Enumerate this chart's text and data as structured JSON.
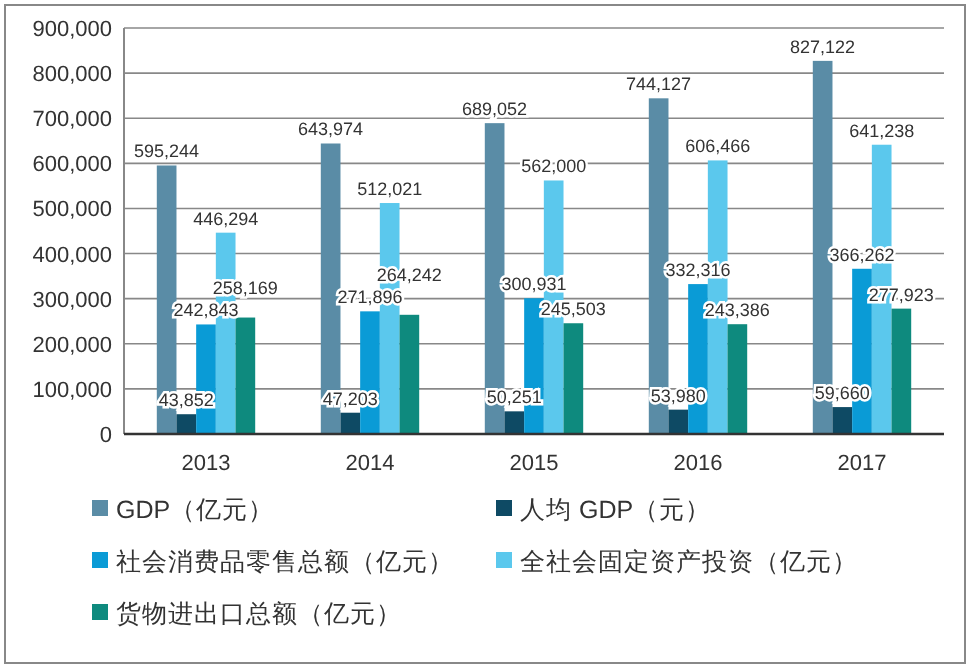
{
  "chart_data": {
    "type": "bar",
    "categories": [
      "2013",
      "2014",
      "2015",
      "2016",
      "2017"
    ],
    "ylim": [
      0,
      900000
    ],
    "yticks": [
      {
        "value": 0,
        "label": "0"
      },
      {
        "value": 100000,
        "label": "100,000"
      },
      {
        "value": 200000,
        "label": "200,000"
      },
      {
        "value": 300000,
        "label": "300,000"
      },
      {
        "value": 400000,
        "label": "400,000"
      },
      {
        "value": 500000,
        "label": "500,000"
      },
      {
        "value": 600000,
        "label": "600,000"
      },
      {
        "value": 700000,
        "label": "700,000"
      },
      {
        "value": 800000,
        "label": "800,000"
      },
      {
        "value": 900000,
        "label": "900,000"
      }
    ],
    "grid": "y",
    "legend": "bottom",
    "series": [
      {
        "name": "GDP（亿元）",
        "color": "#5a8ca6",
        "values": [
          595244,
          643974,
          689052,
          744127,
          827122
        ],
        "value_labels": [
          "595,244",
          "643,974",
          "689,052",
          "744,127",
          "827,122"
        ]
      },
      {
        "name": "人均 GDP（元）",
        "color": "#0e4a64",
        "values": [
          43852,
          47203,
          50251,
          53980,
          59660
        ],
        "value_labels": [
          "43,852",
          "47,203",
          "50,251",
          "53,980",
          "59,660"
        ]
      },
      {
        "name": "社会消费品零售总额（亿元）",
        "color": "#0a9bd6",
        "values": [
          242843,
          271896,
          300931,
          332316,
          366262
        ],
        "value_labels": [
          "242,843",
          "271,896",
          "300,931",
          "332,316",
          "366,262"
        ]
      },
      {
        "name": "全社会固定资产投资（亿元）",
        "color": "#5bc8ed",
        "values": [
          446294,
          512021,
          562000,
          606466,
          641238
        ],
        "value_labels": [
          "446,294",
          "512,021",
          "562,000",
          "606,466",
          "641,238"
        ]
      },
      {
        "name": "货物进出口总额（亿元）",
        "color": "#0e8a7e",
        "values": [
          258169,
          264242,
          245503,
          243386,
          277923
        ],
        "value_labels": [
          "258,169",
          "264,242",
          "245,503",
          "243,386",
          "277,923"
        ]
      }
    ]
  }
}
